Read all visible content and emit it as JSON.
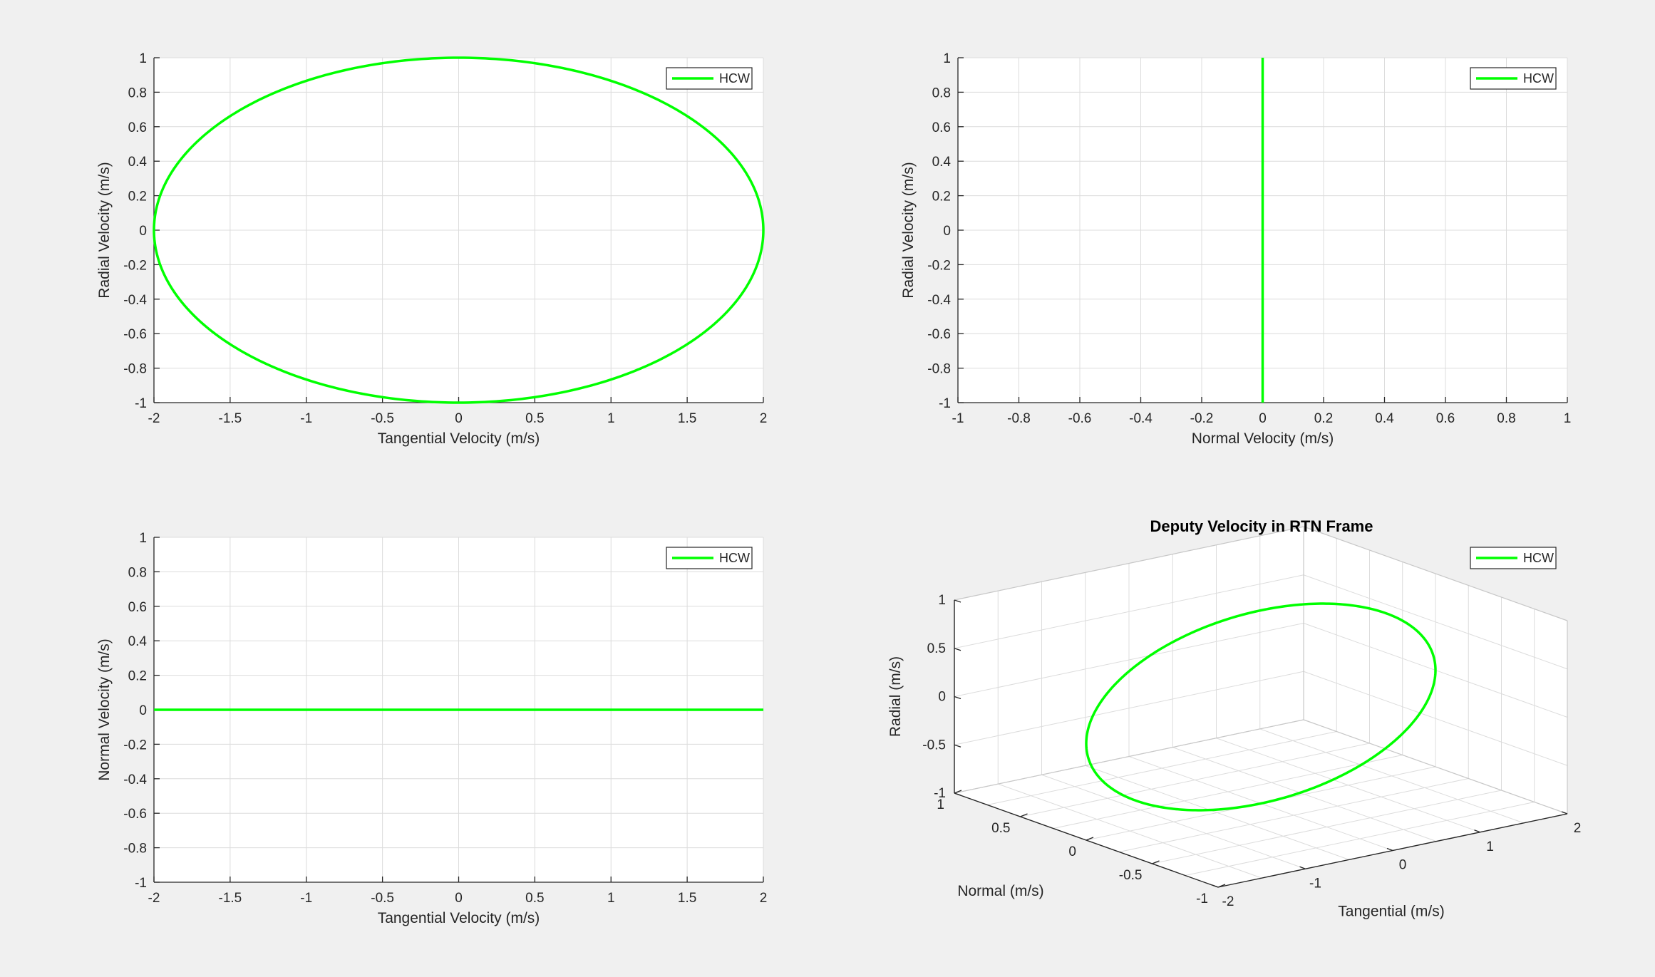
{
  "figure": {
    "background": "#f0f0f0",
    "line_color": "#00ff00",
    "grid_color": "#dcdcdc",
    "axis_color": "#262626"
  },
  "chart_data": [
    {
      "type": "line",
      "title": "",
      "xlabel": "Tangential Velocity (m/s)",
      "ylabel": "Radial Velocity (m/s)",
      "xlim": [
        -2,
        2
      ],
      "ylim": [
        -1,
        1
      ],
      "xticks": [
        "-2",
        "-1.5",
        "-1",
        "-0.5",
        "0",
        "0.5",
        "1",
        "1.5",
        "2"
      ],
      "yticks": [
        "-1",
        "-0.8",
        "-0.6",
        "-0.4",
        "-0.2",
        "0",
        "0.2",
        "0.4",
        "0.6",
        "0.8",
        "1"
      ],
      "grid": true,
      "legend": "top-right",
      "series": [
        {
          "name": "HCW",
          "x": [
            2,
            1.9319,
            1.7321,
            1.4142,
            1,
            0.5176,
            0,
            -0.5176,
            -1,
            -1.4142,
            -1.7321,
            -1.9319,
            -2,
            -1.9319,
            -1.7321,
            -1.4142,
            -1,
            -0.5176,
            0,
            0.5176,
            1,
            1.4142,
            1.7321,
            1.9319,
            2
          ],
          "y": [
            0,
            0.2588,
            0.5,
            0.7071,
            0.866,
            0.9659,
            1,
            0.9659,
            0.866,
            0.7071,
            0.5,
            0.2588,
            0,
            -0.2588,
            -0.5,
            -0.7071,
            -0.866,
            -0.9659,
            -1,
            -0.9659,
            -0.866,
            -0.7071,
            -0.5,
            -0.2588,
            0
          ]
        }
      ]
    },
    {
      "type": "line",
      "title": "",
      "xlabel": "Normal Velocity (m/s)",
      "ylabel": "Radial Velocity (m/s)",
      "xlim": [
        -1,
        1
      ],
      "ylim": [
        -1,
        1
      ],
      "xticks": [
        "-1",
        "-0.8",
        "-0.6",
        "-0.4",
        "-0.2",
        "0",
        "0.2",
        "0.4",
        "0.6",
        "0.8",
        "1"
      ],
      "yticks": [
        "-1",
        "-0.8",
        "-0.6",
        "-0.4",
        "-0.2",
        "0",
        "0.2",
        "0.4",
        "0.6",
        "0.8",
        "1"
      ],
      "grid": true,
      "legend": "top-right",
      "series": [
        {
          "name": "HCW",
          "x": [
            0,
            0
          ],
          "y": [
            -1,
            1
          ]
        }
      ]
    },
    {
      "type": "line",
      "title": "",
      "xlabel": "Tangential Velocity (m/s)",
      "ylabel": "Normal Velocity (m/s)",
      "xlim": [
        -2,
        2
      ],
      "ylim": [
        -1,
        1
      ],
      "xticks": [
        "-2",
        "-1.5",
        "-1",
        "-0.5",
        "0",
        "0.5",
        "1",
        "1.5",
        "2"
      ],
      "yticks": [
        "-1",
        "-0.8",
        "-0.6",
        "-0.4",
        "-0.2",
        "0",
        "0.2",
        "0.4",
        "0.6",
        "0.8",
        "1"
      ],
      "grid": true,
      "legend": "top-right",
      "series": [
        {
          "name": "HCW",
          "x": [
            -2,
            2
          ],
          "y": [
            0,
            0
          ]
        }
      ]
    },
    {
      "type": "line",
      "title": "Deputy Velocity in RTN Frame",
      "xlabel": "Tangential (m/s)",
      "ylabel": "Normal (m/s)",
      "zlabel": "Radial (m/s)",
      "xlim": [
        -2,
        2
      ],
      "ylim": [
        -1,
        1
      ],
      "zlim": [
        -1,
        1
      ],
      "xticks": [
        "-2",
        "-1",
        "0",
        "1",
        "2"
      ],
      "yticks": [
        "-1",
        "-0.5",
        "0",
        "0.5",
        "1"
      ],
      "zticks": [
        "-1",
        "-0.5",
        "0",
        "0.5",
        "1"
      ],
      "grid": true,
      "legend": "top-right",
      "series": [
        {
          "name": "HCW",
          "t": [
            2,
            1.9319,
            1.7321,
            1.4142,
            1,
            0.5176,
            0,
            -0.5176,
            -1,
            -1.4142,
            -1.7321,
            -1.9319,
            -2,
            -1.9319,
            -1.7321,
            -1.4142,
            -1,
            -0.5176,
            0,
            0.5176,
            1,
            1.4142,
            1.7321,
            1.9319,
            2
          ],
          "n": [
            0,
            0,
            0,
            0,
            0,
            0,
            0,
            0,
            0,
            0,
            0,
            0,
            0,
            0,
            0,
            0,
            0,
            0,
            0,
            0,
            0,
            0,
            0,
            0,
            0
          ],
          "r": [
            0,
            0.2588,
            0.5,
            0.7071,
            0.866,
            0.9659,
            1,
            0.9659,
            0.866,
            0.7071,
            0.5,
            0.2588,
            0,
            -0.2588,
            -0.5,
            -0.7071,
            -0.866,
            -0.9659,
            -1,
            -0.9659,
            -0.866,
            -0.7071,
            -0.5,
            -0.2588,
            0
          ]
        }
      ]
    }
  ]
}
